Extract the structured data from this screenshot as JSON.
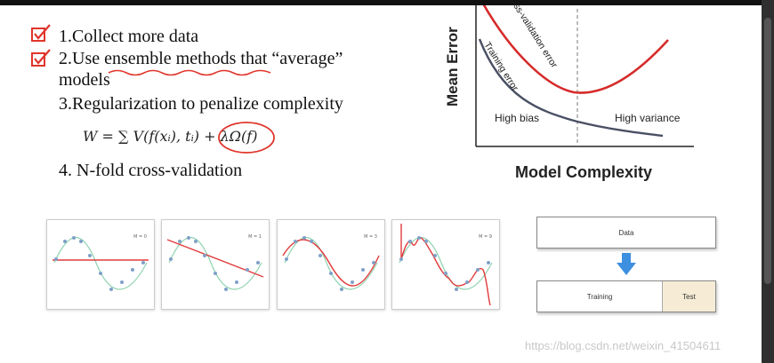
{
  "slide": {
    "items": [
      {
        "text": "1.Collect more data",
        "checked": true
      },
      {
        "text": "2.Use ensemble methods that “average”",
        "checked": true
      },
      {
        "text": "models",
        "checked": false
      },
      {
        "text": "3.Regularization to penalize complexity",
        "checked": false
      },
      {
        "text": "4. N-fold cross-validation",
        "checked": false
      }
    ],
    "formula": "W = ∑ V(f(xᵢ), tᵢ) + λΩ(f)",
    "check_icon": "checkbox-checked-icon",
    "annotation_color": "#e0352b"
  },
  "error_chart": {
    "ylabel": "Mean Error",
    "xlabel": "Model Complexity",
    "cv_label": "Cross-validation error",
    "train_label": "Training error",
    "left_region": "High bias",
    "right_region": "High variance",
    "colors": {
      "cv": "#d62b2b",
      "train": "#4a5064"
    }
  },
  "thumbnails": [
    {
      "label": "M = 0"
    },
    {
      "label": "M = 1"
    },
    {
      "label": "M = 3"
    },
    {
      "label": "M = 9"
    }
  ],
  "data_split": {
    "data_label": "Data",
    "training_label": "Training",
    "test_label": "Test",
    "arrow_icon": "down-arrow-icon",
    "arrow_color": "#3d8fe0"
  },
  "watermark": "https://blog.csdn.net/weixin_41504611"
}
